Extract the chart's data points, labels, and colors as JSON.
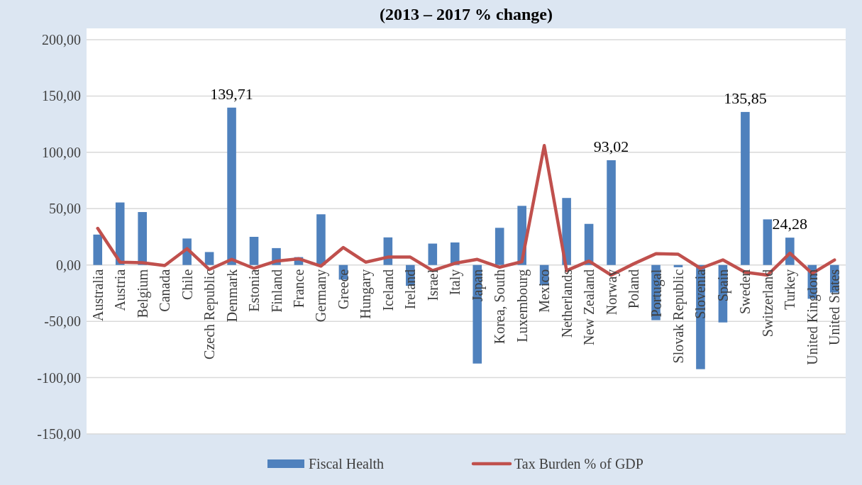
{
  "chart_data": {
    "type": "bar",
    "title": "(2013 – 2017 % change)",
    "categories": [
      "Australia",
      "Austria",
      "Belgium",
      "Canada",
      "Chile",
      "Czech Republic",
      "Denmark",
      "Estonia",
      "Finland",
      "France",
      "Germany",
      "Greece",
      "Hungary",
      "Iceland",
      "Ireland",
      "Israel",
      "Italy",
      "Japan",
      "Korea, South",
      "Luxembourg",
      "Mexico",
      "Netherlands",
      "New Zealand",
      "Norway",
      "Poland",
      "Portugal",
      "Slovak Republic",
      "Slovenia",
      "Spain",
      "Sweden",
      "Switzerland",
      "Turkey",
      "United Kingdom",
      "United States"
    ],
    "series": [
      {
        "name": "Fiscal Health",
        "color": "#4f81bd",
        "values": [
          27,
          55.5,
          47,
          0,
          23.5,
          11.5,
          139.71,
          25,
          15,
          7,
          45,
          -13,
          0,
          24.5,
          -18.5,
          19,
          20,
          -87.5,
          33,
          52.5,
          -18,
          59.5,
          36.5,
          93.02,
          0,
          -49,
          -2,
          -92.5,
          -51,
          135.85,
          40.5,
          24.28,
          -30,
          -24.5
        ],
        "value_labels": [
          null,
          null,
          null,
          null,
          null,
          null,
          "139,71",
          null,
          null,
          null,
          null,
          null,
          null,
          null,
          null,
          null,
          null,
          null,
          null,
          null,
          null,
          null,
          null,
          "93,02",
          null,
          null,
          null,
          null,
          null,
          "135,85",
          null,
          "24,28",
          null,
          null
        ]
      },
      {
        "name": "Tax Burden % of GDP",
        "type": "line",
        "color": "#c0504d",
        "values": [
          32.5,
          2.5,
          2,
          -0.5,
          14.5,
          -4,
          5,
          -3,
          3.5,
          5.5,
          -1,
          15.5,
          2.5,
          7,
          7,
          -5,
          1.5,
          5,
          -2,
          3,
          106,
          -5,
          3.5,
          -9,
          1,
          10,
          9.5,
          -3,
          4.5,
          -6.5,
          -9,
          10.5,
          -7.5,
          4.5
        ]
      }
    ],
    "ylim": [
      -150,
      200
    ],
    "yticks": [
      {
        "value": -150,
        "label": "-150,00"
      },
      {
        "value": -100,
        "label": "-100,00"
      },
      {
        "value": -50,
        "label": "-50,00"
      },
      {
        "value": 0,
        "label": "0,00"
      },
      {
        "value": 50,
        "label": "50,00"
      },
      {
        "value": 100,
        "label": "100,00"
      },
      {
        "value": 150,
        "label": "150,00"
      },
      {
        "value": 200,
        "label": "200,00"
      }
    ],
    "grid": "y",
    "legend": "bottom",
    "marker": "none",
    "line_style": "solid"
  }
}
